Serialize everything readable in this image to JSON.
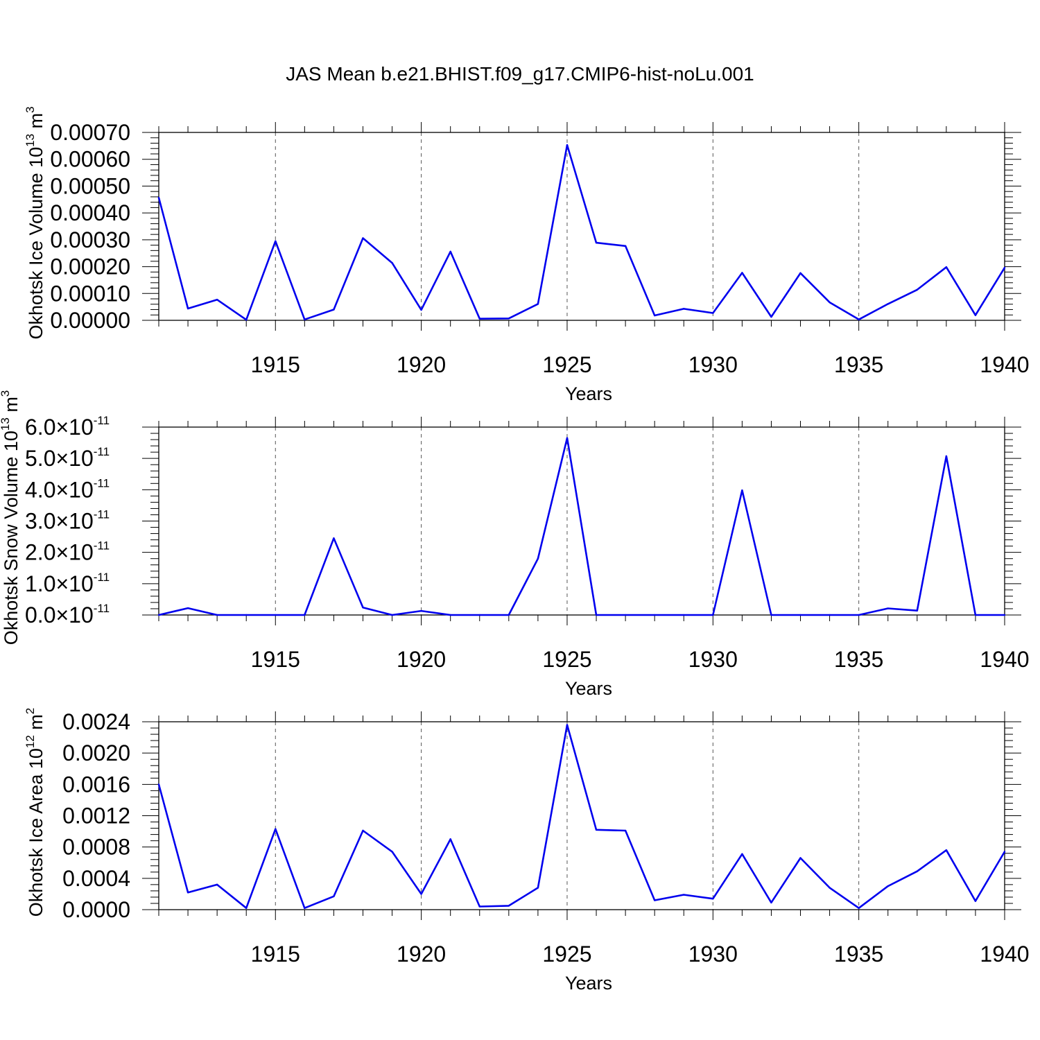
{
  "title": "JAS Mean b.e21.BHIST.f09_g17.CMIP6-hist-noLu.001",
  "chart_data": [
    {
      "type": "line",
      "ylabel": {
        "base": "Okhotsk Ice Volume 10",
        "exp": "13",
        "unit": " m",
        "unit_exp": "3"
      },
      "xlabel": "Years",
      "xlim": [
        1911,
        1940
      ],
      "ylim": [
        0,
        0.0007
      ],
      "x_ticks": [
        1915,
        1920,
        1925,
        1930,
        1935,
        1940
      ],
      "x_tick_labels": [
        "1915",
        "1920",
        "1925",
        "1930",
        "1935",
        "1940"
      ],
      "y_ticks": [
        0,
        0.0001,
        0.0002,
        0.0003,
        0.0004,
        0.0005,
        0.0006,
        0.0007
      ],
      "y_tick_labels": [
        "0.00000",
        "0.00010",
        "0.00020",
        "0.00030",
        "0.00040",
        "0.00050",
        "0.00060",
        "0.00070"
      ],
      "y_tick_suffix": "",
      "series": [
        {
          "name": "Okhotsk Ice Volume",
          "color": "#0000ee",
          "x": [
            1911,
            1912,
            1913,
            1914,
            1915,
            1916,
            1917,
            1918,
            1919,
            1920,
            1921,
            1922,
            1923,
            1924,
            1925,
            1926,
            1927,
            1928,
            1929,
            1930,
            1931,
            1932,
            1933,
            1934,
            1935,
            1936,
            1937,
            1938,
            1939,
            1940
          ],
          "values": [
            0.000457,
            4.4e-05,
            7.7e-05,
            2e-06,
            0.000295,
            3e-06,
            4e-05,
            0.000306,
            0.000214,
            3.9e-05,
            0.000256,
            6e-06,
            7e-06,
            6.1e-05,
            0.000653,
            0.000289,
            0.000277,
            1.8e-05,
            4.3e-05,
            2.7e-05,
            0.000177,
            1.3e-05,
            0.000176,
            6.7e-05,
            3e-06,
            6.1e-05,
            0.000114,
            0.000198,
            1.9e-05,
            0.000196
          ]
        }
      ]
    },
    {
      "type": "line",
      "ylabel": {
        "base": "Okhotsk Snow Volume 10",
        "exp": "13",
        "unit": " m",
        "unit_exp": "3"
      },
      "xlabel": "Years",
      "xlim": [
        1911,
        1940
      ],
      "ylim": [
        0,
        6.0
      ],
      "x_ticks": [
        1915,
        1920,
        1925,
        1930,
        1935,
        1940
      ],
      "x_tick_labels": [
        "1915",
        "1920",
        "1925",
        "1930",
        "1935",
        "1940"
      ],
      "y_ticks": [
        0,
        1,
        2,
        3,
        4,
        5,
        6
      ],
      "y_tick_labels": [
        "0.0",
        "1.0",
        "2.0",
        "3.0",
        "4.0",
        "5.0",
        "6.0"
      ],
      "y_tick_suffix": "×10",
      "y_tick_suffix_exp": "-11",
      "y_unit_scale": "1e-11",
      "series": [
        {
          "name": "Okhotsk Snow Volume",
          "color": "#0000ee",
          "x": [
            1911,
            1912,
            1913,
            1914,
            1915,
            1916,
            1917,
            1918,
            1919,
            1920,
            1921,
            1922,
            1923,
            1924,
            1925,
            1926,
            1927,
            1928,
            1929,
            1930,
            1931,
            1932,
            1933,
            1934,
            1935,
            1936,
            1937,
            1938,
            1939,
            1940
          ],
          "values": [
            0.0,
            0.22,
            0.0,
            0.0,
            0.0,
            0.0,
            2.45,
            0.24,
            0.0,
            0.13,
            0.0,
            0.0,
            0.0,
            1.8,
            5.65,
            0.0,
            0.0,
            0.0,
            0.0,
            0.0,
            3.98,
            0.0,
            0.0,
            0.0,
            0.0,
            0.21,
            0.14,
            5.07,
            0.0,
            0.0
          ]
        }
      ]
    },
    {
      "type": "line",
      "ylabel": {
        "base": "Okhotsk Ice Area 10",
        "exp": "12",
        "unit": " m",
        "unit_exp": "2"
      },
      "xlabel": "Years",
      "xlim": [
        1911,
        1940
      ],
      "ylim": [
        0,
        0.0024
      ],
      "x_ticks": [
        1915,
        1920,
        1925,
        1930,
        1935,
        1940
      ],
      "x_tick_labels": [
        "1915",
        "1920",
        "1925",
        "1930",
        "1935",
        "1940"
      ],
      "y_ticks": [
        0,
        0.0004,
        0.0008,
        0.0012,
        0.0016,
        0.002,
        0.0024
      ],
      "y_tick_labels": [
        "0.0000",
        "0.0004",
        "0.0008",
        "0.0012",
        "0.0016",
        "0.0020",
        "0.0024"
      ],
      "y_tick_suffix": "",
      "series": [
        {
          "name": "Okhotsk Ice Area",
          "color": "#0000ee",
          "x": [
            1911,
            1912,
            1913,
            1914,
            1915,
            1916,
            1917,
            1918,
            1919,
            1920,
            1921,
            1922,
            1923,
            1924,
            1925,
            1926,
            1927,
            1928,
            1929,
            1930,
            1931,
            1932,
            1933,
            1934,
            1935,
            1936,
            1937,
            1938,
            1939,
            1940
          ],
          "values": [
            0.0016,
            0.00022,
            0.00032,
            2e-05,
            0.00103,
            2e-05,
            0.00017,
            0.00101,
            0.00074,
            0.0002,
            0.0009,
            4e-05,
            5e-05,
            0.00028,
            0.00236,
            0.00102,
            0.00101,
            0.00012,
            0.00019,
            0.00014,
            0.00071,
            9e-05,
            0.00066,
            0.00028,
            2e-05,
            0.0003,
            0.00049,
            0.00076,
            0.00011,
            0.00074
          ]
        }
      ]
    }
  ]
}
